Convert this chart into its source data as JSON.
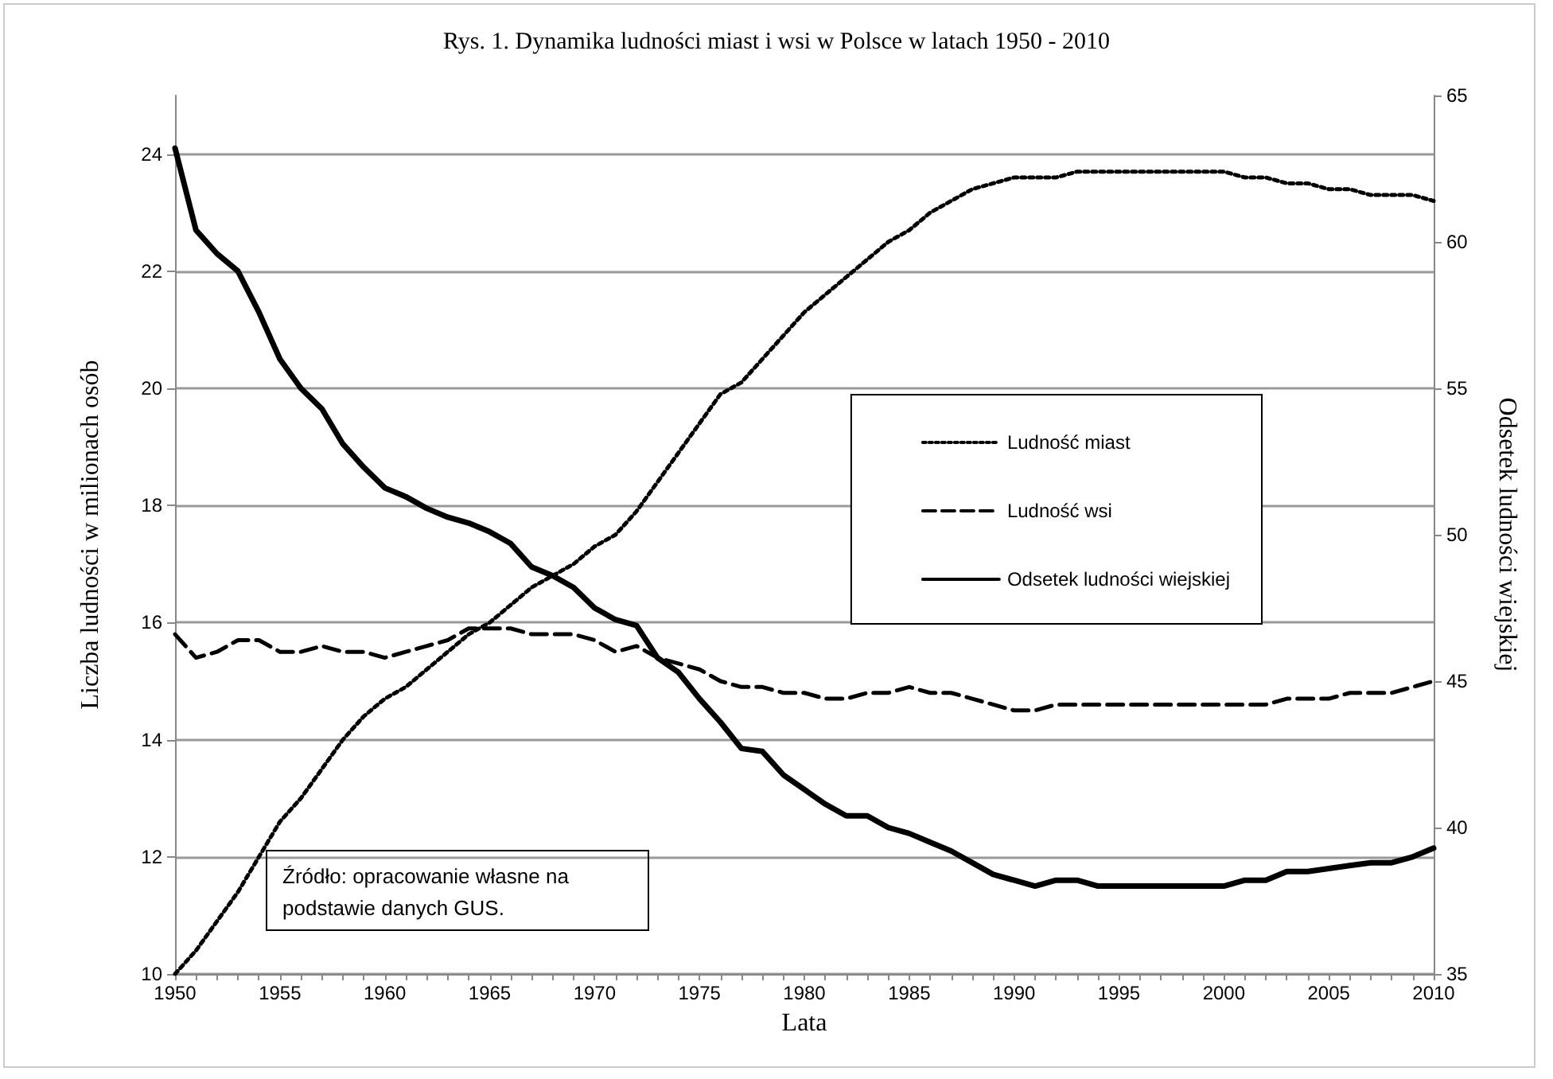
{
  "chart_data": {
    "type": "line",
    "title": "Rys. 1. Dynamika ludności miast i wsi w Polsce w latach 1950 - 2010",
    "xlabel": "Lata",
    "ylabel": "Liczba ludności w milionach osób",
    "y2label": "Odsetek ludności wiejskiej",
    "annotations": [
      "Źródło: opracowanie własne na podstawie danych GUS."
    ],
    "x": [
      1950,
      1951,
      1952,
      1953,
      1954,
      1955,
      1956,
      1957,
      1958,
      1959,
      1960,
      1961,
      1962,
      1963,
      1964,
      1965,
      1966,
      1967,
      1968,
      1969,
      1970,
      1971,
      1972,
      1973,
      1974,
      1975,
      1976,
      1977,
      1978,
      1979,
      1980,
      1981,
      1982,
      1983,
      1984,
      1985,
      1986,
      1987,
      1988,
      1989,
      1990,
      1991,
      1992,
      1993,
      1994,
      1995,
      1996,
      1997,
      1998,
      1999,
      2000,
      2001,
      2002,
      2003,
      2004,
      2005,
      2006,
      2007,
      2008,
      2009,
      2010
    ],
    "series": [
      {
        "name": "Ludność miast",
        "color": "#000000",
        "line_style": "dotted",
        "values": [
          10.0,
          10.4,
          10.9,
          11.4,
          12.0,
          12.6,
          13.0,
          13.5,
          14.0,
          14.4,
          14.7,
          14.9,
          15.2,
          15.5,
          15.8,
          16.0,
          16.3,
          16.6,
          16.8,
          17.0,
          17.3,
          17.5,
          17.9,
          18.4,
          18.9,
          19.4,
          19.9,
          20.1,
          20.5,
          20.9,
          21.3,
          21.6,
          21.9,
          22.2,
          22.5,
          22.7,
          23.0,
          23.2,
          23.4,
          23.5,
          23.6,
          23.6,
          23.6,
          23.7,
          23.7,
          23.7,
          23.7,
          23.7,
          23.7,
          23.7,
          23.7,
          23.6,
          23.6,
          23.5,
          23.5,
          23.4,
          23.4,
          23.3,
          23.3,
          23.3,
          23.2
        ]
      },
      {
        "name": "Ludność wsi",
        "color": "#000000",
        "line_style": "dashed",
        "values": [
          15.8,
          15.4,
          15.5,
          15.7,
          15.7,
          15.5,
          15.5,
          15.6,
          15.5,
          15.5,
          15.4,
          15.5,
          15.6,
          15.7,
          15.9,
          15.9,
          15.9,
          15.8,
          15.8,
          15.8,
          15.7,
          15.5,
          15.6,
          15.4,
          15.3,
          15.2,
          15.0,
          14.9,
          14.9,
          14.8,
          14.8,
          14.7,
          14.7,
          14.8,
          14.8,
          14.9,
          14.8,
          14.8,
          14.7,
          14.6,
          14.5,
          14.5,
          14.6,
          14.6,
          14.6,
          14.6,
          14.6,
          14.6,
          14.6,
          14.6,
          14.6,
          14.6,
          14.6,
          14.7,
          14.7,
          14.7,
          14.8,
          14.8,
          14.8,
          14.9,
          15.0
        ]
      },
      {
        "name": "Odsetek ludności wiejskiej",
        "color": "#000000",
        "line_style": "solid",
        "axis": "y2",
        "values": [
          63.2,
          60.4,
          59.6,
          59.0,
          57.6,
          56.0,
          55.0,
          54.3,
          53.1,
          52.3,
          51.6,
          51.3,
          50.9,
          50.6,
          50.4,
          50.1,
          49.7,
          48.9,
          48.6,
          48.2,
          47.5,
          47.1,
          46.9,
          45.8,
          45.3,
          44.4,
          43.6,
          42.7,
          42.6,
          41.8,
          41.3,
          40.8,
          40.4,
          40.4,
          40.0,
          39.8,
          39.5,
          39.2,
          38.8,
          38.4,
          38.2,
          38.0,
          38.2,
          38.2,
          38.0,
          38.0,
          38.0,
          38.0,
          38.0,
          38.0,
          38.0,
          38.2,
          38.2,
          38.5,
          38.5,
          38.6,
          38.7,
          38.8,
          38.8,
          39.0,
          39.3
        ]
      }
    ],
    "xlim": [
      1950,
      2010
    ],
    "xticks": [
      1950,
      {
        "value": 1951,
        "label": null
      },
      {
        "value": 1952,
        "label": null
      },
      {
        "value": 1953,
        "label": null
      },
      {
        "value": 1954,
        "label": null
      },
      1955,
      {
        "value": 1956,
        "label": null
      },
      {
        "value": 1957,
        "label": null
      },
      {
        "value": 1958,
        "label": null
      },
      {
        "value": 1959,
        "label": null
      },
      1960,
      {
        "value": 1961,
        "label": null
      },
      {
        "value": 1962,
        "label": null
      },
      {
        "value": 1963,
        "label": null
      },
      {
        "value": 1964,
        "label": null
      },
      1965,
      {
        "value": 1966,
        "label": null
      },
      {
        "value": 1967,
        "label": null
      },
      {
        "value": 1968,
        "label": null
      },
      {
        "value": 1969,
        "label": null
      },
      1970,
      {
        "value": 1971,
        "label": null
      },
      {
        "value": 1972,
        "label": null
      },
      {
        "value": 1973,
        "label": null
      },
      {
        "value": 1974,
        "label": null
      },
      1975,
      {
        "value": 1976,
        "label": null
      },
      {
        "value": 1977,
        "label": null
      },
      {
        "value": 1978,
        "label": null
      },
      {
        "value": 1979,
        "label": null
      },
      1980,
      {
        "value": 1981,
        "label": null
      },
      {
        "value": 1982,
        "label": null
      },
      {
        "value": 1983,
        "label": null
      },
      {
        "value": 1984,
        "label": null
      },
      1985,
      {
        "value": 1986,
        "label": null
      },
      {
        "value": 1987,
        "label": null
      },
      {
        "value": 1988,
        "label": null
      },
      {
        "value": 1989,
        "label": null
      },
      1990,
      {
        "value": 1991,
        "label": null
      },
      {
        "value": 1992,
        "label": null
      },
      {
        "value": 1993,
        "label": null
      },
      {
        "value": 1994,
        "label": null
      },
      1995,
      {
        "value": 1996,
        "label": null
      },
      {
        "value": 1997,
        "label": null
      },
      {
        "value": 1998,
        "label": null
      },
      {
        "value": 1999,
        "label": null
      },
      2000,
      {
        "value": 2001,
        "label": null
      },
      {
        "value": 2002,
        "label": null
      },
      {
        "value": 2003,
        "label": null
      },
      {
        "value": 2004,
        "label": null
      },
      2005,
      {
        "value": 2006,
        "label": null
      },
      {
        "value": 2007,
        "label": null
      },
      {
        "value": 2008,
        "label": null
      },
      {
        "value": 2009,
        "label": null
      },
      2010
    ],
    "ylim": [
      10,
      25
    ],
    "yticks": [
      10,
      12,
      14,
      16,
      18,
      20,
      22,
      24
    ],
    "y2lim": [
      35,
      65
    ],
    "y2ticks": [
      35,
      40,
      45,
      50,
      55,
      60,
      65
    ],
    "grid": "y",
    "legend": "right",
    "marker": "none"
  }
}
